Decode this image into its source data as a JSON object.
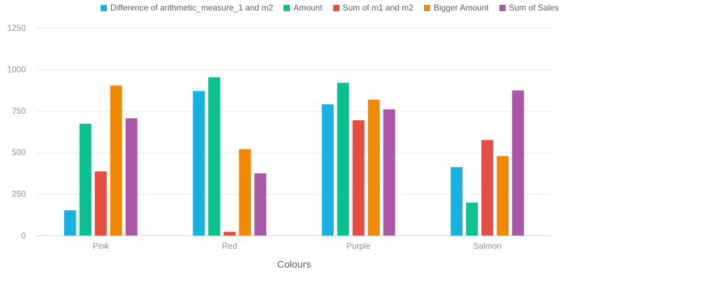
{
  "chart_data": {
    "type": "bar",
    "title": "",
    "xlabel": "Colours",
    "ylabel": "",
    "categories": [
      "Pink",
      "Red",
      "Purple",
      "Salmon"
    ],
    "ylim": [
      0,
      1250
    ],
    "yticks": [
      0,
      250,
      500,
      750,
      1000,
      1250
    ],
    "grid": true,
    "legend_position": "top",
    "series": [
      {
        "name": "Difference of arithmetic_measure_1 and m2",
        "color": "#17b1e3",
        "values": [
          152,
          870,
          790,
          412
        ]
      },
      {
        "name": "Amount",
        "color": "#08c18f",
        "values": [
          673,
          953,
          920,
          198
        ]
      },
      {
        "name": "Sum of m1 and m2",
        "color": "#e64c41",
        "values": [
          386,
          22,
          694,
          575
        ]
      },
      {
        "name": "Bigger Amount",
        "color": "#f18800",
        "values": [
          903,
          520,
          818,
          478
        ]
      },
      {
        "name": "Sum of Sales",
        "color": "#ab57a7",
        "values": [
          706,
          374,
          760,
          874
        ]
      }
    ]
  }
}
